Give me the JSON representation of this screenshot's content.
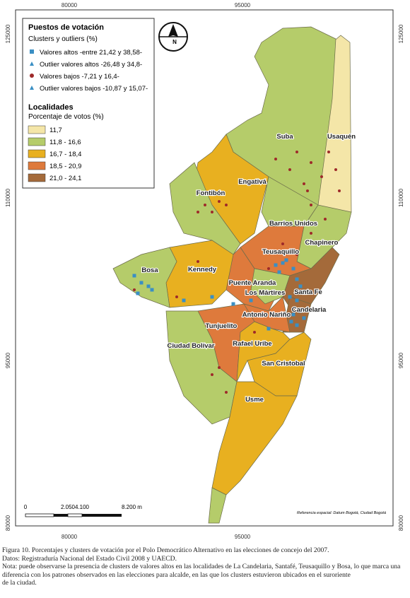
{
  "map": {
    "coordinates": {
      "top": [
        "80000",
        "95000"
      ],
      "bottom": [
        "80000",
        "95000"
      ],
      "left": [
        "125000",
        "110000",
        "95000",
        "80000"
      ],
      "right": [
        "125000",
        "110000",
        "95000",
        "80000"
      ]
    },
    "legend": {
      "title": "Puestos de votación",
      "subtitle": "Clusters y outliers (%)",
      "points": [
        "Valores altos -entre 21,42 y 38,58-",
        "Outlier valores altos -26,48 y 34,8-",
        "Valores bajos -7,21 y 16,4-",
        "Outlier valores bajos -10,87 y 15,07-"
      ],
      "areas_title": "Localidades",
      "areas_subtitle": "Porcentaje de votos (%)",
      "classes": [
        "11,7",
        "11,8 - 16,6",
        "16,7 - 18,4",
        "18,5 - 20,9",
        "21,0 - 24,1"
      ]
    },
    "north": "N",
    "localities": [
      "Suba",
      "Usaquén",
      "Engativá",
      "Fontibón",
      "Barrios Unidos",
      "Chapinero",
      "Teusaquillo",
      "Bosa",
      "Kennedy",
      "Puente Aranda",
      "Los Mártires",
      "Santa Fe",
      "Candelaria",
      "Antonio Nariño",
      "Tunjuelito",
      "Rafael Uribe",
      "Ciudad Bolívar",
      "San Cristobal",
      "Usme"
    ],
    "scale": [
      "0",
      "2.050",
      "4.100",
      "8.200 m"
    ],
    "reference": "Referencia espacial: Datum Bogotá, Ciudad Bogotá"
  },
  "caption": {
    "lines": [
      "Figura 10. Porcentajes y clusters de votación por el Polo Democrático Alternativo en las elecciones de concejo del 2007.",
      "Datos: Registraduría Nacional del Estado Civil 2008 y UAECD.",
      "Nota: puede observarse la presencia de clusters de valores altos en las localidades de La Candelaria, Santafé, Teusaquillo y Bosa, lo que marca una",
      "diferencia con los patrones observados en las elecciones para alcalde, en las que los clusters estuvieron ubicados en el suroriente",
      "de la ciudad."
    ]
  }
}
